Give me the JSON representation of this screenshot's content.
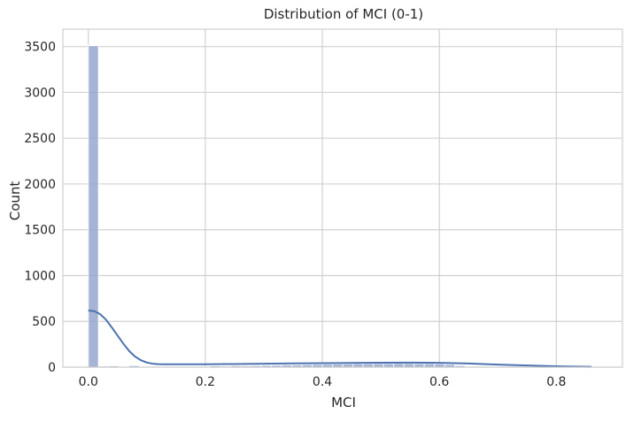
{
  "chart_data": {
    "type": "bar",
    "title": "Distribution of MCI (0-1)",
    "xlabel": "MCI",
    "ylabel": "Count",
    "xlim": [
      -0.0435,
      0.913
    ],
    "ylim": [
      0,
      3690
    ],
    "x_ticks": [
      0.0,
      0.2,
      0.4,
      0.6,
      0.8
    ],
    "x_tick_labels": [
      "0.0",
      "0.2",
      "0.4",
      "0.6",
      "0.8"
    ],
    "y_ticks": [
      0,
      500,
      1000,
      1500,
      2000,
      2500,
      3000,
      3500
    ],
    "y_tick_labels": [
      "0",
      "500",
      "1000",
      "1500",
      "2000",
      "2500",
      "3000",
      "3500"
    ],
    "grid": true,
    "bar_color": "#8da0cb",
    "kde_color": "#4c72b0",
    "bin_width": 0.0174,
    "bins_start": [
      0.0,
      0.0174,
      0.0348,
      0.0522,
      0.0696,
      0.087,
      0.1044,
      0.1218,
      0.1392,
      0.1566,
      0.174,
      0.1914,
      0.2088,
      0.2262,
      0.2436,
      0.261,
      0.2784,
      0.2958,
      0.3132,
      0.3306,
      0.348,
      0.3654,
      0.3828,
      0.4002,
      0.4176,
      0.435,
      0.4524,
      0.4698,
      0.4872,
      0.5046,
      0.522,
      0.5394,
      0.5568,
      0.5742,
      0.5916,
      0.609,
      0.6264,
      0.6438,
      0.6612,
      0.6786,
      0.696,
      0.7134,
      0.7308,
      0.7482,
      0.7656,
      0.783,
      0.8004,
      0.8178,
      0.8352,
      0.8526
    ],
    "counts": [
      3510,
      12,
      15,
      8,
      18,
      8,
      8,
      4,
      4,
      6,
      5,
      5,
      15,
      12,
      16,
      15,
      17,
      20,
      22,
      25,
      25,
      28,
      30,
      32,
      33,
      34,
      36,
      37,
      38,
      38,
      40,
      40,
      38,
      38,
      36,
      30,
      18,
      10,
      6,
      5,
      4,
      4,
      3,
      3,
      3,
      3,
      2,
      2,
      2,
      1
    ],
    "kde_x": [
      0.0,
      0.01,
      0.02,
      0.03,
      0.04,
      0.05,
      0.06,
      0.07,
      0.08,
      0.09,
      0.1,
      0.11,
      0.12,
      0.13,
      0.15,
      0.2,
      0.25,
      0.3,
      0.35,
      0.4,
      0.45,
      0.5,
      0.55,
      0.6,
      0.65,
      0.7,
      0.75,
      0.8,
      0.86
    ],
    "kde_y": [
      618,
      612,
      580,
      520,
      435,
      345,
      255,
      175,
      115,
      75,
      50,
      38,
      33,
      32,
      31,
      32,
      34,
      38,
      41,
      44,
      46,
      48,
      49,
      47,
      40,
      28,
      18,
      10,
      4
    ]
  }
}
